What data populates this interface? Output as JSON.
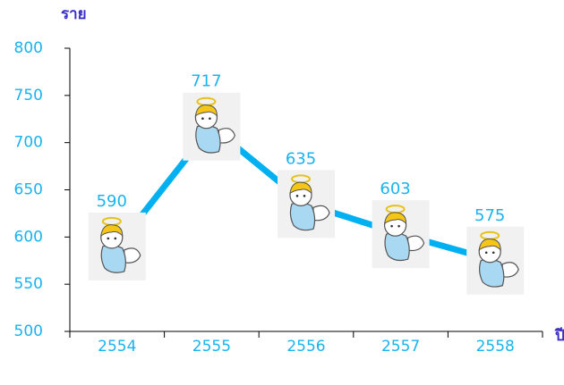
{
  "chart_data": {
    "type": "line",
    "y_label": "ราย",
    "x_label": "ปี",
    "categories": [
      "2554",
      "2555",
      "2556",
      "2557",
      "2558"
    ],
    "values": [
      590,
      717,
      635,
      603,
      575
    ],
    "color": "#00b0f0",
    "ylim": [
      500,
      800
    ],
    "yticks": [
      500,
      550,
      600,
      650,
      700,
      750,
      800
    ],
    "grid": false
  }
}
